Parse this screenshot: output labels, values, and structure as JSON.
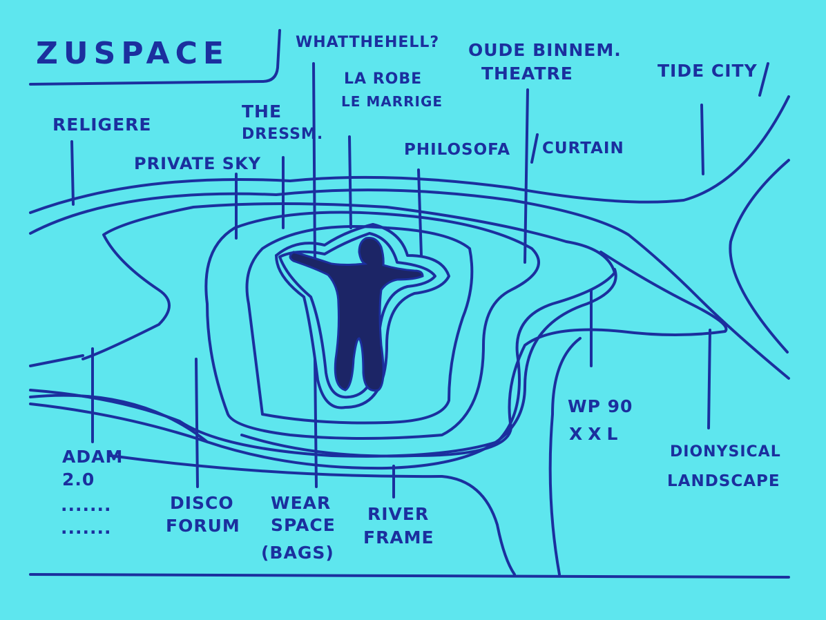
{
  "colors": {
    "background": "#5ee6ee",
    "ink": "#1b2f9e",
    "figure": "#1c2566"
  },
  "title": "ZUSPACE",
  "labels": {
    "what_the_hell": "WHATTHEHELL?",
    "oude_binnen": "OUDE BINNEM.",
    "theatre": "THEATRE",
    "tide_city": "TIDE CITY",
    "la_robe": "LA ROBE",
    "le_marriage": "LE MARRIGE",
    "the": "THE",
    "dressm": "DRESSM.",
    "religere": "RELIGERE",
    "private_sky": "PRIVATE SKY",
    "philosofa": "PHILOSOFA",
    "curtain": "CURTAIN",
    "wp90": "WP 90",
    "xxl": "XXL",
    "adam": "ADAM",
    "adam_version": "2.0",
    "dots": ".......",
    "disco": "DISCO",
    "forum": "FORUM",
    "wear": "WEAR",
    "space": "SPACE",
    "bags": "(BAGS)",
    "river": "RIVER",
    "frame": "FRAME",
    "dionysical": "DIONYSICAL",
    "landscape": "LANDSCAPE"
  }
}
